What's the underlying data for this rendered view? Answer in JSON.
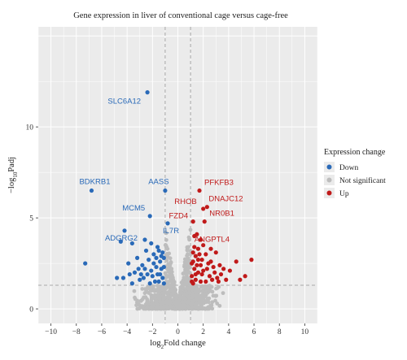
{
  "chart_data": {
    "type": "scatter",
    "title": "Gene expression in liver of conventional cage versus cage-free",
    "xlabel": {
      "main": "log",
      "sub": "2",
      "rest": "Fold change"
    },
    "ylabel": {
      "pre": "−log",
      "sub": "10",
      "rest": "Padj"
    },
    "xlim": [
      -11,
      11
    ],
    "ylim": [
      -0.8,
      15.5
    ],
    "x_ticks": [
      -10,
      -8,
      -6,
      -4,
      -2,
      0,
      2,
      4,
      6,
      8,
      10
    ],
    "y_ticks": [
      0,
      5,
      10
    ],
    "x_tick_labels": [
      "−10",
      "−8",
      "−6",
      "−4",
      "−2",
      "0",
      "2",
      "4",
      "6",
      "8",
      "10"
    ],
    "y_tick_labels": [
      "0",
      "5",
      "10"
    ],
    "thresholds": {
      "log2fc": [
        -1,
        1
      ],
      "neglog10padj": 1.3
    },
    "legend": {
      "title": "Expression change",
      "position": "right",
      "entries": [
        {
          "label": "Down",
          "color": "#2a6ab8"
        },
        {
          "label": "Not significant",
          "color": "#bdbdbd"
        },
        {
          "label": "Up",
          "color": "#c01a1a"
        }
      ]
    },
    "colors": {
      "panel": "#ebebeb",
      "grid": "#ffffff",
      "down": "#2a6ab8",
      "up": "#c01a1a",
      "ns": "#bdbdbd",
      "threshold": "#a8a8a8"
    },
    "annotations": [
      {
        "label": "SLC6A12",
        "x": -2.4,
        "y": 11.9,
        "group": "down"
      },
      {
        "label": "BDKRB1",
        "x": -6.8,
        "y": 6.5,
        "group": "down"
      },
      {
        "label": "AASS",
        "x": -1.0,
        "y": 6.5,
        "group": "down"
      },
      {
        "label": "MCM5",
        "x": -2.2,
        "y": 5.1,
        "group": "down"
      },
      {
        "label": "ADGRG2",
        "x": -4.2,
        "y": 4.3,
        "group": "down"
      },
      {
        "label": "IL7R",
        "x": -0.8,
        "y": 4.7,
        "group": "down"
      },
      {
        "label": "PFKFB3",
        "x": 1.7,
        "y": 6.5,
        "group": "up"
      },
      {
        "label": "DNAJC12",
        "x": 2.3,
        "y": 5.6,
        "group": "up"
      },
      {
        "label": "RHOB",
        "x": 2.0,
        "y": 5.5,
        "group": "up"
      },
      {
        "label": "NR0B1",
        "x": 2.1,
        "y": 4.8,
        "group": "up"
      },
      {
        "label": "FZD4",
        "x": 1.2,
        "y": 4.8,
        "group": "up"
      },
      {
        "label": "ANGPTL4",
        "x": 1.3,
        "y": 4.0,
        "group": "up"
      }
    ],
    "series": [
      {
        "name": "Down",
        "points": [
          [
            -2.4,
            11.9
          ],
          [
            -6.8,
            6.5
          ],
          [
            -1.0,
            6.5
          ],
          [
            -2.2,
            5.1
          ],
          [
            -4.2,
            4.3
          ],
          [
            -0.8,
            4.7
          ],
          [
            -7.3,
            2.5
          ],
          [
            -4.5,
            3.7
          ],
          [
            -3.6,
            3.6
          ],
          [
            -2.6,
            3.8
          ],
          [
            -2.1,
            3.6
          ],
          [
            -1.5,
            3.2
          ],
          [
            -1.2,
            3.1
          ],
          [
            -1.1,
            2.8
          ],
          [
            -1.4,
            2.6
          ],
          [
            -1.7,
            2.3
          ],
          [
            -1.9,
            2.5
          ],
          [
            -2.3,
            2.7
          ],
          [
            -2.8,
            2.4
          ],
          [
            -3.1,
            2.2
          ],
          [
            -3.4,
            2.0
          ],
          [
            -3.9,
            2.5
          ],
          [
            -4.3,
            1.7
          ],
          [
            -1.3,
            2.2
          ],
          [
            -1.6,
            1.9
          ],
          [
            -2.0,
            1.8
          ],
          [
            -2.4,
            1.9
          ],
          [
            -2.7,
            1.7
          ],
          [
            -3.0,
            1.6
          ],
          [
            -1.2,
            1.7
          ],
          [
            -1.5,
            1.5
          ],
          [
            -1.8,
            1.5
          ],
          [
            -2.2,
            1.4
          ],
          [
            -3.6,
            1.4
          ],
          [
            -4.8,
            1.7
          ],
          [
            -1.1,
            1.4
          ],
          [
            -1.3,
            2.9
          ],
          [
            -2.5,
            3.2
          ],
          [
            -3.2,
            2.8
          ],
          [
            -1.9,
            3.0
          ],
          [
            -2.9,
            1.9
          ],
          [
            -1.4,
            1.9
          ],
          [
            -2.6,
            2.2
          ],
          [
            -1.7,
            2.8
          ],
          [
            -3.8,
            1.9
          ],
          [
            -1.1,
            2.3
          ],
          [
            -2.1,
            2.1
          ],
          [
            -1.6,
            3.4
          ]
        ]
      },
      {
        "name": "Up",
        "points": [
          [
            1.7,
            6.5
          ],
          [
            2.3,
            5.6
          ],
          [
            2.0,
            5.5
          ],
          [
            2.1,
            4.8
          ],
          [
            1.2,
            4.8
          ],
          [
            1.3,
            4.0
          ],
          [
            1.5,
            4.1
          ],
          [
            1.8,
            3.8
          ],
          [
            2.6,
            3.3
          ],
          [
            2.2,
            3.0
          ],
          [
            3.0,
            3.1
          ],
          [
            1.6,
            3.3
          ],
          [
            1.4,
            2.9
          ],
          [
            1.2,
            2.6
          ],
          [
            1.9,
            2.7
          ],
          [
            2.4,
            2.5
          ],
          [
            2.8,
            2.3
          ],
          [
            3.3,
            2.4
          ],
          [
            3.6,
            2.2
          ],
          [
            4.1,
            2.1
          ],
          [
            4.6,
            2.6
          ],
          [
            5.8,
            2.7
          ],
          [
            4.9,
            1.6
          ],
          [
            5.3,
            1.8
          ],
          [
            3.8,
            1.6
          ],
          [
            3.1,
            1.7
          ],
          [
            2.5,
            1.8
          ],
          [
            1.3,
            2.2
          ],
          [
            1.6,
            2.0
          ],
          [
            2.0,
            2.1
          ],
          [
            1.1,
            1.8
          ],
          [
            1.4,
            1.6
          ],
          [
            1.8,
            1.5
          ],
          [
            2.2,
            1.5
          ],
          [
            2.7,
            1.6
          ],
          [
            1.2,
            1.4
          ],
          [
            1.5,
            2.4
          ],
          [
            1.7,
            3.0
          ],
          [
            2.9,
            2.0
          ],
          [
            1.1,
            2.5
          ],
          [
            1.9,
            1.9
          ],
          [
            1.3,
            3.4
          ],
          [
            2.3,
            2.2
          ],
          [
            1.6,
            2.7
          ],
          [
            3.4,
            1.9
          ],
          [
            1.2,
            3.1
          ],
          [
            2.0,
            3.5
          ],
          [
            1.4,
            1.9
          ],
          [
            2.6,
            2.6
          ],
          [
            1.8,
            2.4
          ],
          [
            1.1,
            1.5
          ],
          [
            3.2,
            1.5
          ]
        ]
      }
    ]
  }
}
